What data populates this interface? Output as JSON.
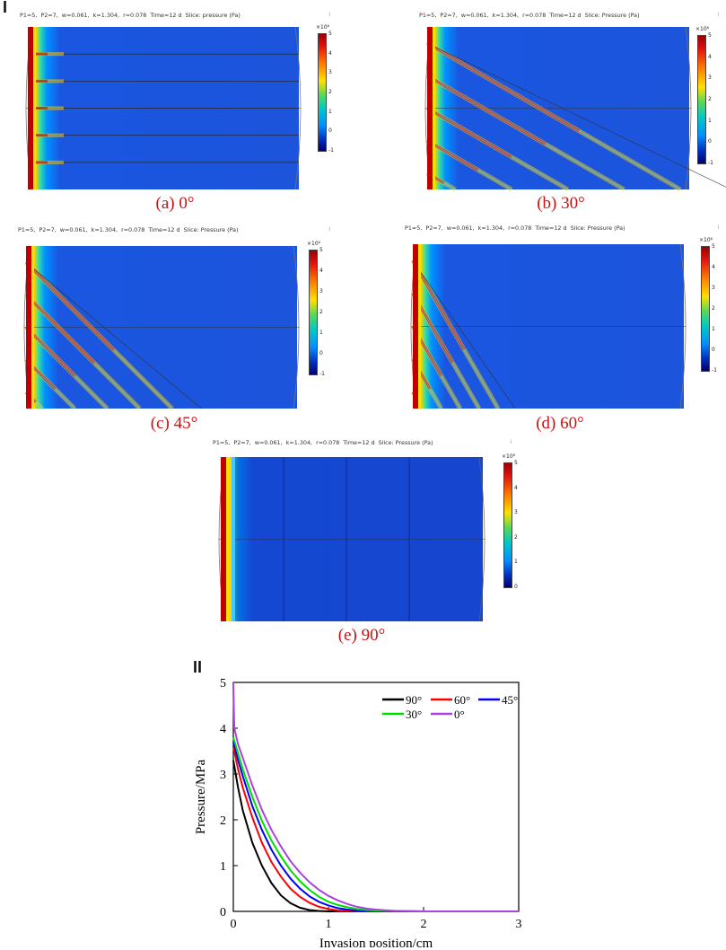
{
  "part1_label": "I",
  "part2_label": "II",
  "panels": [
    {
      "id": "a",
      "header": {
        "p1": "P1=5,",
        "p2": "P2=7,",
        "w": "w=0.061,",
        "k": "k=1.304,",
        "r": "r=0.078",
        "time": "Time=12 d",
        "slice": "Slice: pressure (Pa)"
      },
      "colorbar": {
        "exponent": "×10⁶",
        "ticks": [
          "5",
          "4",
          "3",
          "2",
          "1",
          "0",
          "-1"
        ]
      },
      "caption": "(a) 0°",
      "angle_deg": 0
    },
    {
      "id": "b",
      "header": {
        "p1": "P1=5,",
        "p2": "P2=7,",
        "w": "w=0.061,",
        "k": "k=1.304,",
        "r": "r=0.078",
        "time": "Time=12 d",
        "slice": "Slice: Pressure (Pa)"
      },
      "colorbar": {
        "exponent": "×10⁶",
        "ticks": [
          "5",
          "4",
          "3",
          "2",
          "1",
          "0",
          "-1"
        ]
      },
      "caption": "(b) 30°",
      "angle_deg": 30
    },
    {
      "id": "c",
      "header": {
        "p1": "P1=5,",
        "p2": "P2=7,",
        "w": "w=0.061,",
        "k": "k=1.304,",
        "r": "r=0.078",
        "time": "Time=12 d",
        "slice": "Slice: Pressure (Pa)"
      },
      "colorbar": {
        "exponent": "×10⁶",
        "ticks": [
          "5",
          "4",
          "3",
          "2",
          "1",
          "0",
          "-1"
        ]
      },
      "caption": "(c) 45°",
      "angle_deg": 45
    },
    {
      "id": "d",
      "header": {
        "p1": "P1=5,",
        "p2": "P2=7,",
        "w": "w=0.061,",
        "k": "k=1.304,",
        "r": "r=0.078",
        "time": "Time=12 d",
        "slice": "Slice: Pressure (Pa)"
      },
      "colorbar": {
        "exponent": "×10⁶",
        "ticks": [
          "5",
          "4",
          "3",
          "2",
          "1",
          "0",
          "-1"
        ]
      },
      "caption": "(d) 60°",
      "angle_deg": 60
    },
    {
      "id": "e",
      "header": {
        "p1": "P1=5,",
        "p2": "P2=7,",
        "w": "w=0.061,",
        "k": "k=1.304,",
        "r": "r=0.078",
        "time": "Time=12 d",
        "slice": "Slice: Pressure (Pa)"
      },
      "colorbar": {
        "exponent": "×10⁶",
        "ticks": [
          "5",
          "4",
          "3",
          "2",
          "1",
          "0"
        ]
      },
      "caption": "(e) 90°",
      "angle_deg": 90
    }
  ],
  "chart_data": {
    "type": "line",
    "xlabel": "Invasion position/cm",
    "ylabel": "Pressure/MPa",
    "xlim": [
      0,
      3
    ],
    "ylim": [
      0,
      5
    ],
    "xticks": [
      "0",
      "1",
      "2",
      "3"
    ],
    "yticks": [
      "0",
      "1",
      "2",
      "3",
      "4",
      "5"
    ],
    "legend_position": "top-right",
    "series": [
      {
        "name": "90°",
        "color": "#000000",
        "x": [
          0,
          0.05,
          0.1,
          0.2,
          0.3,
          0.4,
          0.5,
          0.6,
          0.7,
          0.8,
          0.9,
          1.0,
          1.2,
          1.5,
          2,
          2.5,
          3
        ],
        "y": [
          3.3,
          2.7,
          2.2,
          1.5,
          1.0,
          0.62,
          0.35,
          0.18,
          0.08,
          0.03,
          0.01,
          0,
          0,
          0,
          0,
          0,
          0
        ]
      },
      {
        "name": "60°",
        "color": "#ff0000",
        "x": [
          0,
          0.05,
          0.1,
          0.2,
          0.3,
          0.4,
          0.5,
          0.6,
          0.7,
          0.8,
          0.9,
          1.0,
          1.1,
          1.2,
          1.5,
          2,
          2.5,
          3
        ],
        "y": [
          3.6,
          3.1,
          2.7,
          2.05,
          1.5,
          1.08,
          0.76,
          0.5,
          0.32,
          0.19,
          0.1,
          0.05,
          0.02,
          0.01,
          0,
          0,
          0,
          0
        ]
      },
      {
        "name": "45°",
        "color": "#0000ff",
        "x": [
          0,
          0.05,
          0.1,
          0.2,
          0.3,
          0.4,
          0.5,
          0.6,
          0.7,
          0.8,
          0.9,
          1.0,
          1.1,
          1.2,
          1.3,
          1.5,
          2,
          2.5,
          3
        ],
        "y": [
          3.7,
          3.3,
          2.95,
          2.3,
          1.78,
          1.35,
          1.0,
          0.72,
          0.5,
          0.33,
          0.21,
          0.13,
          0.07,
          0.04,
          0.02,
          0.01,
          0,
          0,
          0
        ]
      },
      {
        "name": "30°",
        "color": "#00dd00",
        "x": [
          0,
          0.05,
          0.1,
          0.2,
          0.3,
          0.4,
          0.5,
          0.6,
          0.7,
          0.8,
          0.9,
          1.0,
          1.1,
          1.2,
          1.3,
          1.4,
          1.5,
          2,
          2.5,
          3
        ],
        "y": [
          3.8,
          3.45,
          3.1,
          2.5,
          1.98,
          1.55,
          1.2,
          0.9,
          0.66,
          0.47,
          0.32,
          0.21,
          0.14,
          0.09,
          0.05,
          0.03,
          0.02,
          0,
          0,
          0
        ]
      },
      {
        "name": "0°",
        "color": "#aa44dd",
        "x": [
          0,
          0.01,
          0.05,
          0.1,
          0.2,
          0.3,
          0.4,
          0.5,
          0.6,
          0.7,
          0.8,
          0.9,
          1.0,
          1.1,
          1.2,
          1.3,
          1.4,
          1.5,
          1.7,
          2,
          2.5,
          3
        ],
        "y": [
          5.0,
          4.0,
          3.65,
          3.35,
          2.75,
          2.22,
          1.78,
          1.42,
          1.1,
          0.85,
          0.64,
          0.47,
          0.34,
          0.24,
          0.16,
          0.1,
          0.06,
          0.04,
          0.01,
          0,
          0,
          0
        ]
      }
    ]
  }
}
